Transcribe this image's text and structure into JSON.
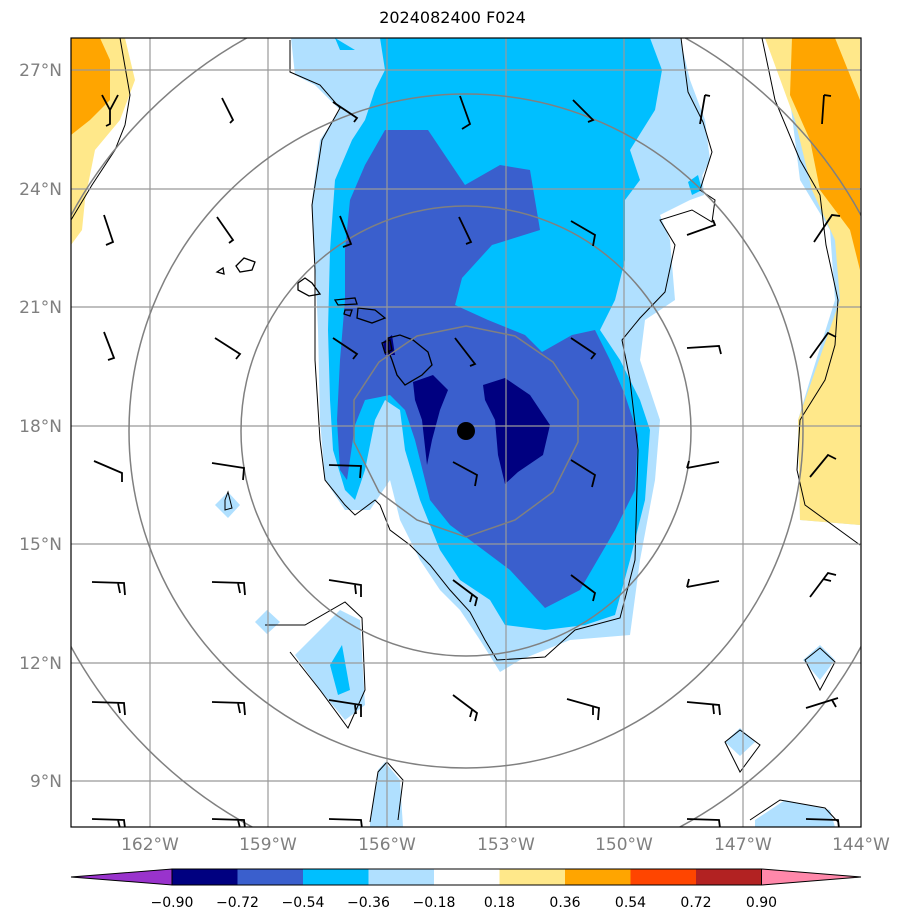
{
  "title": "2024082400 F024",
  "map": {
    "lat_labels": [
      "27°N",
      "24°N",
      "21°N",
      "18°N",
      "15°N",
      "12°N",
      "9°N"
    ],
    "lon_labels": [
      "162°W",
      "159°W",
      "156°W",
      "153°W",
      "150°W",
      "147°W",
      "144°W"
    ],
    "extent": {
      "lon_min": -164,
      "lon_max": -144,
      "lat_min": 7.8,
      "lat_max": 27.8
    },
    "storm_center": {
      "lon": -154.2,
      "lat": 17.8
    }
  },
  "colorbar": {
    "levels": [
      "−0.90",
      "−0.72",
      "−0.54",
      "−0.36",
      "−0.18",
      "0.18",
      "0.36",
      "0.54",
      "0.72",
      "0.90"
    ],
    "colors": [
      "#9933cc",
      "#000080",
      "#3a5fcd",
      "#00bfff",
      "#b0e0ff",
      "#ffffff",
      "#ffe88a",
      "#ffa500",
      "#ff4500",
      "#b22222",
      "#ff88aa"
    ]
  }
}
